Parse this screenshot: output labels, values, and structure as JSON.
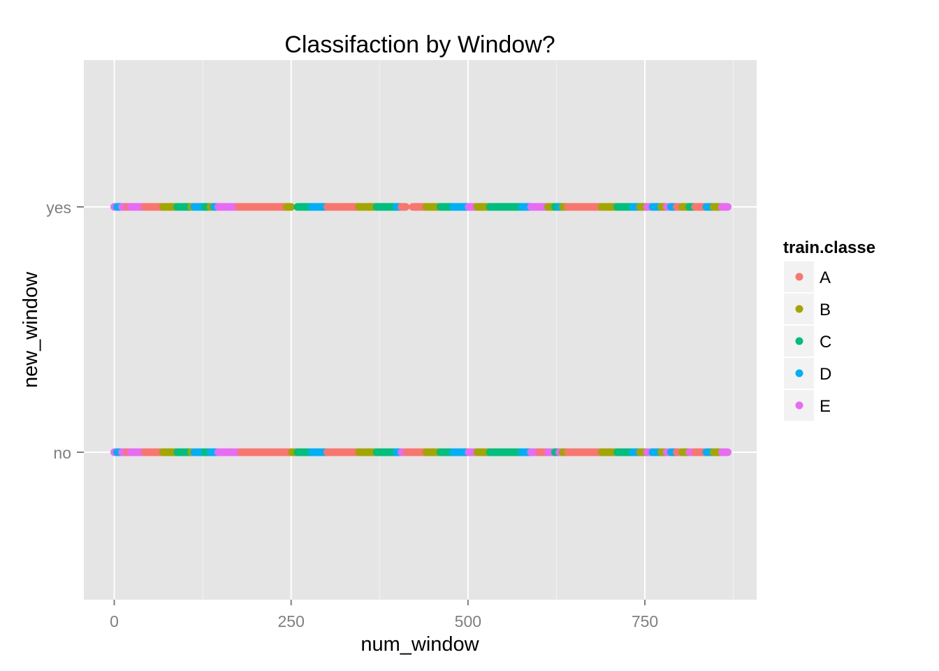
{
  "chart_data": {
    "type": "scatter",
    "title": "Classifaction by Window?",
    "xlabel": "num_window",
    "ylabel": "new_window",
    "xlim": [
      -43,
      908
    ],
    "x_ticks": [
      0,
      250,
      500,
      750
    ],
    "y_categories": [
      "no",
      "yes"
    ],
    "grid": true,
    "legend_position": "right",
    "legend_title": "train.classe",
    "series": [
      {
        "name": "A",
        "color": "#F8766D"
      },
      {
        "name": "B",
        "color": "#A3A500"
      },
      {
        "name": "C",
        "color": "#00BF7D"
      },
      {
        "name": "D",
        "color": "#00B0F6"
      },
      {
        "name": "E",
        "color": "#E76BF3"
      }
    ],
    "segments": {
      "yes": [
        [
          0,
          3,
          "E"
        ],
        [
          4,
          10,
          "D"
        ],
        [
          11,
          17,
          "E"
        ],
        [
          18,
          22,
          "A"
        ],
        [
          23,
          30,
          "E"
        ],
        [
          31,
          42,
          "E"
        ],
        [
          43,
          52,
          "A"
        ],
        [
          53,
          62,
          "A"
        ],
        [
          63,
          68,
          "A"
        ],
        [
          69,
          88,
          "B"
        ],
        [
          89,
          108,
          "C"
        ],
        [
          109,
          112,
          "B"
        ],
        [
          113,
          127,
          "D"
        ],
        [
          128,
          135,
          "C"
        ],
        [
          136,
          140,
          "B"
        ],
        [
          141,
          146,
          "D"
        ],
        [
          147,
          175,
          "E"
        ],
        [
          176,
          198,
          "A"
        ],
        [
          199,
          243,
          "A"
        ],
        [
          244,
          250,
          "B"
        ],
        [
          259,
          278,
          "C"
        ],
        [
          279,
          300,
          "D"
        ],
        [
          301,
          345,
          "A"
        ],
        [
          346,
          370,
          "B"
        ],
        [
          371,
          398,
          "C"
        ],
        [
          399,
          405,
          "D"
        ],
        [
          406,
          412,
          "A"
        ],
        [
          422,
          440,
          "A"
        ],
        [
          441,
          460,
          "B"
        ],
        [
          461,
          478,
          "C"
        ],
        [
          479,
          500,
          "D"
        ],
        [
          501,
          512,
          "E"
        ],
        [
          513,
          530,
          "B"
        ],
        [
          531,
          575,
          "C"
        ],
        [
          576,
          588,
          "D"
        ],
        [
          589,
          612,
          "E"
        ],
        [
          613,
          622,
          "B"
        ],
        [
          623,
          628,
          "C"
        ],
        [
          629,
          633,
          "D"
        ],
        [
          634,
          640,
          "B"
        ],
        [
          641,
          688,
          "A"
        ],
        [
          689,
          710,
          "B"
        ],
        [
          711,
          732,
          "C"
        ],
        [
          733,
          742,
          "D"
        ],
        [
          743,
          752,
          "B"
        ],
        [
          753,
          760,
          "E"
        ],
        [
          761,
          772,
          "D"
        ],
        [
          773,
          780,
          "B"
        ],
        [
          781,
          786,
          "E"
        ],
        [
          787,
          794,
          "D"
        ],
        [
          795,
          802,
          "A"
        ],
        [
          803,
          812,
          "B"
        ],
        [
          813,
          820,
          "C"
        ],
        [
          821,
          836,
          "A"
        ],
        [
          837,
          846,
          "D"
        ],
        [
          847,
          858,
          "B"
        ],
        [
          859,
          867,
          "E"
        ]
      ],
      "no": [
        [
          0,
          3,
          "E"
        ],
        [
          4,
          10,
          "D"
        ],
        [
          11,
          17,
          "E"
        ],
        [
          18,
          22,
          "A"
        ],
        [
          23,
          42,
          "E"
        ],
        [
          43,
          68,
          "A"
        ],
        [
          69,
          88,
          "B"
        ],
        [
          89,
          108,
          "C"
        ],
        [
          109,
          112,
          "B"
        ],
        [
          113,
          127,
          "D"
        ],
        [
          128,
          135,
          "C"
        ],
        [
          136,
          146,
          "D"
        ],
        [
          147,
          178,
          "E"
        ],
        [
          179,
          250,
          "A"
        ],
        [
          251,
          258,
          "B"
        ],
        [
          259,
          278,
          "C"
        ],
        [
          279,
          300,
          "D"
        ],
        [
          301,
          345,
          "A"
        ],
        [
          346,
          370,
          "B"
        ],
        [
          371,
          398,
          "C"
        ],
        [
          399,
          405,
          "D"
        ],
        [
          406,
          412,
          "E"
        ],
        [
          413,
          440,
          "A"
        ],
        [
          441,
          460,
          "B"
        ],
        [
          461,
          478,
          "C"
        ],
        [
          479,
          500,
          "D"
        ],
        [
          501,
          512,
          "E"
        ],
        [
          513,
          530,
          "B"
        ],
        [
          531,
          575,
          "C"
        ],
        [
          576,
          588,
          "D"
        ],
        [
          589,
          600,
          "E"
        ],
        [
          601,
          612,
          "A"
        ],
        [
          613,
          622,
          "E"
        ],
        [
          623,
          628,
          "C"
        ],
        [
          629,
          633,
          "E"
        ],
        [
          634,
          640,
          "B"
        ],
        [
          641,
          688,
          "A"
        ],
        [
          689,
          710,
          "B"
        ],
        [
          711,
          732,
          "C"
        ],
        [
          733,
          742,
          "D"
        ],
        [
          743,
          752,
          "B"
        ],
        [
          753,
          760,
          "E"
        ],
        [
          761,
          772,
          "D"
        ],
        [
          773,
          780,
          "B"
        ],
        [
          781,
          786,
          "E"
        ],
        [
          787,
          794,
          "D"
        ],
        [
          795,
          802,
          "A"
        ],
        [
          803,
          812,
          "B"
        ],
        [
          813,
          820,
          "E"
        ],
        [
          821,
          836,
          "A"
        ],
        [
          837,
          846,
          "D"
        ],
        [
          847,
          858,
          "B"
        ],
        [
          859,
          867,
          "E"
        ]
      ]
    }
  }
}
